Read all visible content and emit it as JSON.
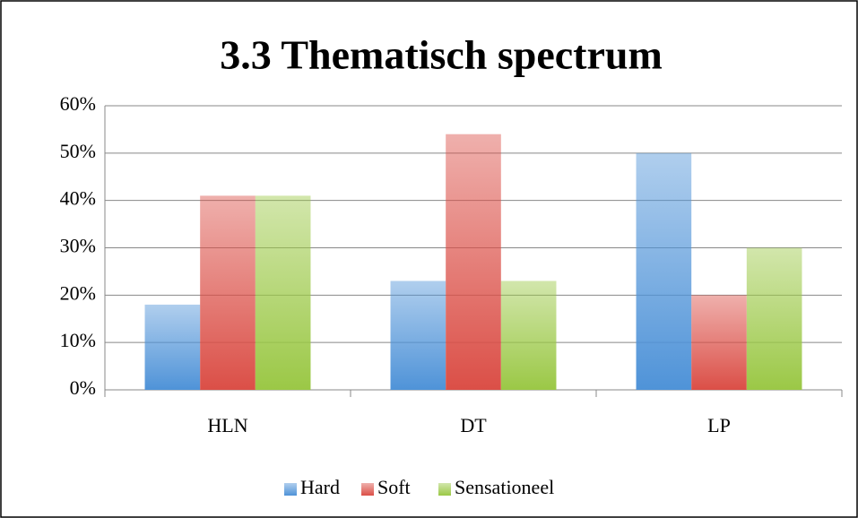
{
  "chart_data": {
    "type": "bar",
    "title": "3.3 Thematisch spectrum",
    "categories": [
      "HLN",
      "DT",
      "LP"
    ],
    "series": [
      {
        "name": "Hard",
        "color": "#4f93d8",
        "values": [
          18,
          23,
          50
        ]
      },
      {
        "name": "Soft",
        "color": "#db4f47",
        "values": [
          41,
          54,
          20
        ]
      },
      {
        "name": "Sensationeel",
        "color": "#9bc846",
        "values": [
          41,
          23,
          30
        ]
      }
    ],
    "ylim": [
      0,
      60
    ],
    "yticks": [
      {
        "value": 0,
        "label": "0%"
      },
      {
        "value": 10,
        "label": "10%"
      },
      {
        "value": 20,
        "label": "20%"
      },
      {
        "value": 30,
        "label": "30%"
      },
      {
        "value": 40,
        "label": "40%"
      },
      {
        "value": 50,
        "label": "50%"
      },
      {
        "value": 60,
        "label": "60%"
      }
    ],
    "grid": true,
    "legend": "bottom"
  }
}
